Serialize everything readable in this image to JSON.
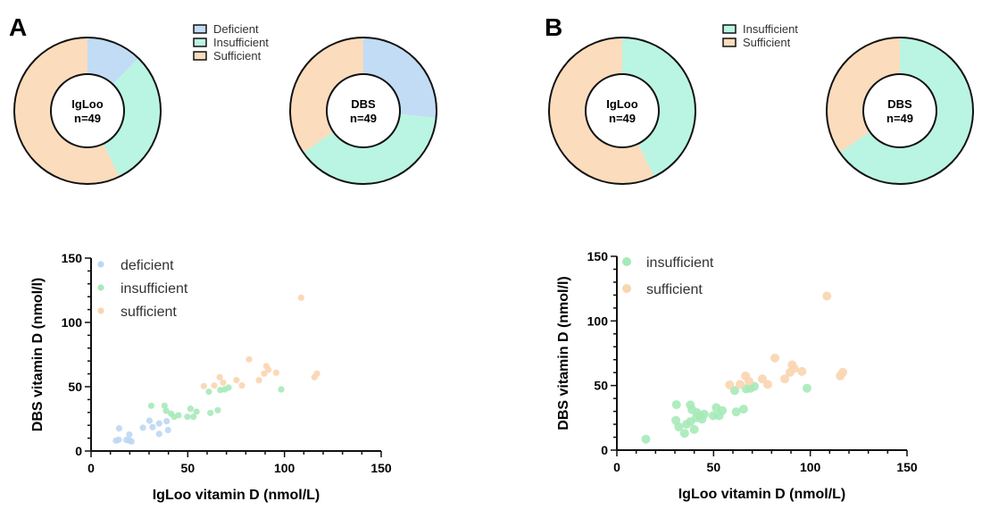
{
  "colors": {
    "deficient": "#c2dcf5",
    "insufficient": "#b9f5e2",
    "sufficient": "#fbdcbd",
    "scatter_deficient": "#bcd7f2",
    "scatter_insufficient": "#a6eab8",
    "scatter_sufficient": "#f9d5b0"
  },
  "chart_data": [
    {
      "panel": "A",
      "type": "pie",
      "donut": true,
      "center_label": [
        "IgLoo",
        "n=49"
      ],
      "categories": [
        "Deficient",
        "Insufficient",
        "Sufficient"
      ],
      "values": [
        6,
        15,
        28
      ]
    },
    {
      "panel": "A",
      "type": "pie",
      "donut": true,
      "center_label": [
        "DBS",
        "n=49"
      ],
      "categories": [
        "Deficient",
        "Insufficient",
        "Sufficient"
      ],
      "values": [
        13,
        19,
        17
      ]
    },
    {
      "panel": "B",
      "type": "pie",
      "donut": true,
      "center_label": [
        "IgLoo",
        "n=49"
      ],
      "categories": [
        "Insufficient",
        "Sufficient"
      ],
      "values": [
        21,
        28
      ]
    },
    {
      "panel": "B",
      "type": "pie",
      "donut": true,
      "center_label": [
        "DBS",
        "n=49"
      ],
      "categories": [
        "Insufficient",
        "Sufficient"
      ],
      "values": [
        32,
        17
      ]
    },
    {
      "panel": "A",
      "type": "scatter",
      "xlabel": "IgLoo vitamin D (nmol/L)",
      "ylabel": "DBS vitamin D (nmol/l)",
      "xlim": [
        0,
        150
      ],
      "ylim": [
        0,
        150
      ],
      "xticks": [
        "0",
        "50",
        "100",
        "150"
      ],
      "yticks": [
        "0",
        "50",
        "100",
        "150"
      ],
      "legend": "top-left",
      "series": [
        {
          "name": "deficient",
          "points": [
            [
              12.9,
              8.1
            ],
            [
              14.3,
              8.8
            ],
            [
              18.3,
              8.6
            ],
            [
              19.8,
              8.1
            ],
            [
              20.9,
              7.4
            ],
            [
              14.5,
              17.6
            ],
            [
              19.8,
              12.8
            ],
            [
              26.8,
              18.1
            ],
            [
              30.2,
              23.6
            ],
            [
              31.8,
              18.6
            ],
            [
              35.2,
              13.3
            ],
            [
              35.2,
              21.4
            ],
            [
              39.1,
              23.2
            ],
            [
              39.8,
              16.3
            ]
          ]
        },
        {
          "name": "insufficient",
          "points": [
            [
              31.1,
              35.2
            ],
            [
              38.0,
              35.2
            ],
            [
              38.8,
              31.3
            ],
            [
              41.4,
              29.0
            ],
            [
              42.9,
              26.6
            ],
            [
              45.2,
              27.8
            ],
            [
              49.8,
              26.6
            ],
            [
              51.4,
              32.9
            ],
            [
              52.9,
              26.6
            ],
            [
              54.5,
              30.6
            ],
            [
              60.9,
              46.1
            ],
            [
              61.7,
              29.6
            ],
            [
              65.5,
              31.7
            ],
            [
              66.8,
              47.4
            ],
            [
              69.1,
              47.9
            ],
            [
              71.1,
              49.3
            ],
            [
              98.3,
              47.9
            ]
          ]
        },
        {
          "name": "sufficient",
          "points": [
            [
              58.3,
              50.5
            ],
            [
              63.7,
              50.9
            ],
            [
              66.5,
              57.4
            ],
            [
              68.3,
              53.2
            ],
            [
              75.2,
              55.1
            ],
            [
              78.0,
              50.9
            ],
            [
              81.7,
              71.3
            ],
            [
              86.8,
              55.1
            ],
            [
              89.5,
              60.2
            ],
            [
              90.6,
              66.0
            ],
            [
              91.7,
              63.2
            ],
            [
              95.7,
              60.9
            ],
            [
              108.6,
              119.2
            ],
            [
              115.5,
              57.4
            ],
            [
              116.8,
              60.2
            ]
          ]
        }
      ]
    },
    {
      "panel": "B",
      "type": "scatter",
      "xlabel": "IgLoo vitamin D (nmol/L)",
      "ylabel": "DBS vitamin D (nmol/l)",
      "xlim": [
        0,
        150
      ],
      "ylim": [
        0,
        150
      ],
      "xticks": [
        "0",
        "50",
        "100",
        "150"
      ],
      "yticks": [
        "0",
        "50",
        "100",
        "150"
      ],
      "legend": "top-left",
      "series": [
        {
          "name": "insufficient",
          "points": [
            [
              15,
              8.5
            ],
            [
              30.5,
              23
            ],
            [
              32,
              18
            ],
            [
              35,
              13
            ],
            [
              36,
              20
            ],
            [
              38,
              22
            ],
            [
              40,
              16
            ],
            [
              41,
              25
            ],
            [
              30.8,
              35.2
            ],
            [
              38,
              35
            ],
            [
              38.8,
              31.3
            ],
            [
              41.4,
              29.0
            ],
            [
              42.9,
              26.6
            ],
            [
              45.2,
              27.8
            ],
            [
              44,
              24
            ],
            [
              49.8,
              26.6
            ],
            [
              51.4,
              32.9
            ],
            [
              52.9,
              26.6
            ],
            [
              54.5,
              30.6
            ],
            [
              60.9,
              46.1
            ],
            [
              61.7,
              29.6
            ],
            [
              65.5,
              31.7
            ],
            [
              66.8,
              47.4
            ],
            [
              69.1,
              47.9
            ],
            [
              71.1,
              49.3
            ],
            [
              98.3,
              47.9
            ]
          ]
        },
        {
          "name": "sufficient",
          "points": [
            [
              58.3,
              50.5
            ],
            [
              63.7,
              50.9
            ],
            [
              66.5,
              57.4
            ],
            [
              68.3,
              53.2
            ],
            [
              75.2,
              55.1
            ],
            [
              78.0,
              50.9
            ],
            [
              81.7,
              71.3
            ],
            [
              86.8,
              55.1
            ],
            [
              89.5,
              60.2
            ],
            [
              90.6,
              66.0
            ],
            [
              91.7,
              63.2
            ],
            [
              95.7,
              60.9
            ],
            [
              108.6,
              119.2
            ],
            [
              115.5,
              57.4
            ],
            [
              116.8,
              60.2
            ]
          ]
        }
      ]
    }
  ],
  "panels": {
    "a_label": "A",
    "b_label": "B"
  }
}
